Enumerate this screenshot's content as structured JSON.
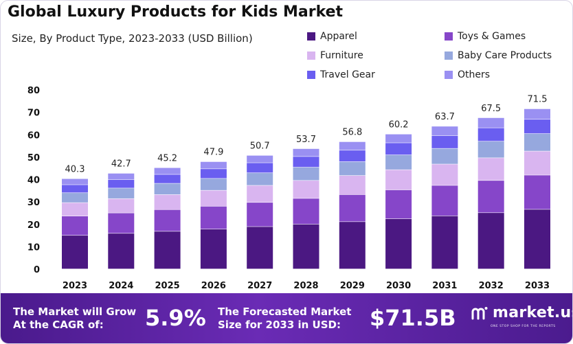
{
  "header": {
    "title": "Global Luxury Products for Kids Market",
    "subtitle": "Size, By Product Type, 2023-2033 (USD Billion)"
  },
  "chart_data": {
    "type": "bar",
    "stacked": true,
    "categories": [
      "2023",
      "2024",
      "2025",
      "2026",
      "2027",
      "2028",
      "2029",
      "2030",
      "2031",
      "2032",
      "2033"
    ],
    "totals": [
      40.3,
      42.7,
      45.2,
      47.9,
      50.7,
      53.7,
      56.8,
      60.2,
      63.7,
      67.5,
      71.5
    ],
    "series": [
      {
        "name": "Apparel",
        "color": "#4b1882",
        "values": [
          15.0,
          15.9,
          16.8,
          17.8,
          18.9,
          20.0,
          21.1,
          22.4,
          23.7,
          25.1,
          26.6
        ]
      },
      {
        "name": "Toys & Games",
        "color": "#8646c9",
        "values": [
          8.6,
          9.1,
          9.7,
          10.2,
          10.8,
          11.5,
          12.1,
          12.9,
          13.6,
          14.4,
          15.3
        ]
      },
      {
        "name": "Furniture",
        "color": "#d9b5f0",
        "values": [
          6.0,
          6.4,
          6.7,
          7.1,
          7.6,
          8.0,
          8.5,
          9.0,
          9.5,
          10.1,
          10.7
        ]
      },
      {
        "name": "Baby Care Products",
        "color": "#96a8de",
        "values": [
          4.4,
          4.7,
          5.0,
          5.3,
          5.6,
          5.9,
          6.2,
          6.6,
          7.0,
          7.4,
          7.8
        ]
      },
      {
        "name": "Travel Gear",
        "color": "#6a5ef0",
        "values": [
          3.6,
          3.8,
          4.0,
          4.3,
          4.5,
          4.8,
          5.1,
          5.4,
          5.7,
          6.0,
          6.4
        ]
      },
      {
        "name": "Others",
        "color": "#9a90f2",
        "values": [
          2.7,
          2.8,
          3.0,
          3.2,
          3.3,
          3.5,
          3.8,
          3.9,
          4.2,
          4.5,
          4.7
        ]
      }
    ],
    "ylim": [
      0,
      80
    ],
    "yticks": [
      0,
      10,
      20,
      30,
      40,
      50,
      60,
      70,
      80
    ],
    "grid": false,
    "legend_position": "top-right"
  },
  "footer": {
    "cagr_label_line1": "The Market will Grow",
    "cagr_label_line2": "At the CAGR of:",
    "cagr_value": "5.9%",
    "forecast_label_line1": "The Forecasted Market",
    "forecast_label_line2": "Size for 2033 in USD:",
    "forecast_value": "$71.5B",
    "brand_name": "market.us",
    "brand_tagline": "ONE STOP SHOP FOR THE REPORTS"
  }
}
